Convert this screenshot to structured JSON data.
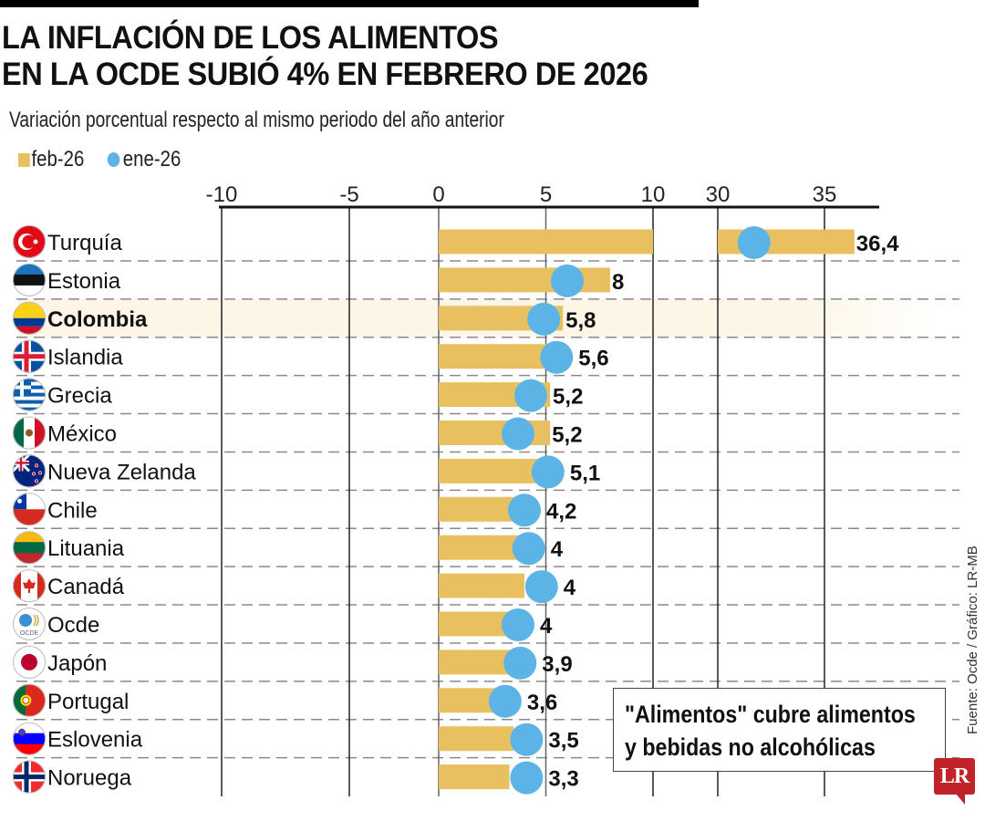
{
  "header": {
    "title_line1": "LA INFLACIÓN DE LOS ALIMENTOS",
    "title_line2": "EN LA OCDE SUBIÓ 4% EN FEBRERO DE 2026",
    "subtitle": "Variación porcentual respecto al mismo periodo del año anterior"
  },
  "legend": {
    "bar_label": "feb-26",
    "dot_label": "ene-26"
  },
  "colors": {
    "bar": "#E9C060",
    "dot": "#5BB4E5",
    "highlight_row": "#FDF6E7",
    "logo": "#C0242A"
  },
  "note": {
    "line1": "\"Alimentos\" cubre alimentos",
    "line2": "y bebidas no alcohólicas"
  },
  "source": "Fuente: Ocde / Gráfico: LR-MB",
  "logo": "LR",
  "chart_data": {
    "type": "bar",
    "orientation": "horizontal",
    "title": "La inflación de los alimentos en la OCDE subió 4% en febrero de 2026",
    "subtitle": "Variación porcentual respecto al mismo periodo del año anterior",
    "xlabel": "",
    "ylabel": "",
    "x_ticks": [
      -10,
      -5,
      0,
      5,
      10,
      30,
      35
    ],
    "x_tick_labels": [
      "-10",
      "-5",
      "0",
      "5",
      "10",
      "30",
      "35"
    ],
    "axis_break": [
      10,
      30
    ],
    "xlim": [
      -10,
      37
    ],
    "grid": true,
    "legend_position": "top-left",
    "highlight": "Colombia",
    "categories": [
      "Turquía",
      "Estonia",
      "Colombia",
      "Islandia",
      "Grecia",
      "México",
      "Nueva Zelanda",
      "Chile",
      "Lituania",
      "Canadá",
      "Ocde",
      "Japón",
      "Portugal",
      "Eslovenia",
      "Noruega"
    ],
    "flags": [
      "turkey-flag",
      "estonia-flag",
      "colombia-flag",
      "iceland-flag",
      "greece-flag",
      "mexico-flag",
      "new-zealand-flag",
      "chile-flag",
      "lithuania-flag",
      "canada-flag",
      "oecd-logo",
      "japan-flag",
      "portugal-flag",
      "slovenia-flag",
      "norway-flag"
    ],
    "series": [
      {
        "name": "feb-26",
        "type": "bar",
        "values": [
          36.4,
          8,
          5.8,
          5.6,
          5.2,
          5.2,
          5.1,
          4.2,
          4,
          4,
          4,
          3.9,
          3.6,
          3.5,
          3.3
        ],
        "labels": [
          "36,4",
          "8",
          "5,8",
          "5,6",
          "5,2",
          "5,2",
          "5,1",
          "4,2",
          "4",
          "4",
          "4",
          "3,9",
          "3,6",
          "3,5",
          "3,3"
        ]
      },
      {
        "name": "ene-26",
        "type": "dot",
        "values": [
          31.7,
          6.0,
          4.9,
          5.5,
          4.3,
          3.7,
          5.1,
          4.0,
          4.2,
          4.8,
          3.7,
          3.8,
          3.1,
          4.1,
          4.1
        ]
      }
    ]
  }
}
